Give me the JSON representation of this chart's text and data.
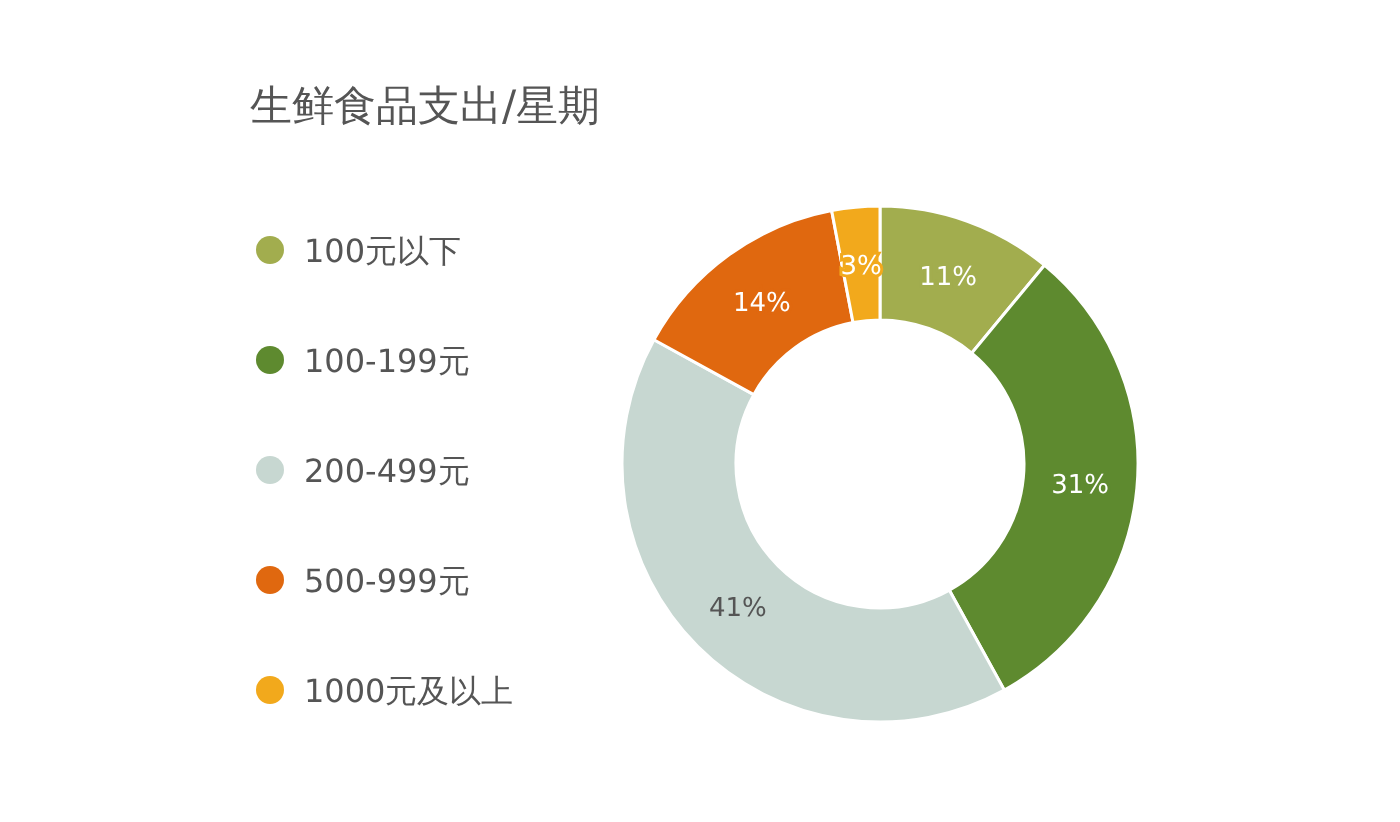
{
  "chart_data": {
    "type": "donut",
    "title": "生鲜食品支出/星期",
    "categories": [
      "100元以下",
      "100-199元",
      "200-499元",
      "500-999元",
      "1000元及以上"
    ],
    "values": [
      11,
      31,
      41,
      14,
      3
    ],
    "colors": [
      "#a2ad4e",
      "#5e8a2f",
      "#c7d7d1",
      "#e0680f",
      "#f2a91c"
    ],
    "value_labels": [
      "11%",
      "31%",
      "41%",
      "14%",
      "3%"
    ],
    "legend": "left"
  }
}
